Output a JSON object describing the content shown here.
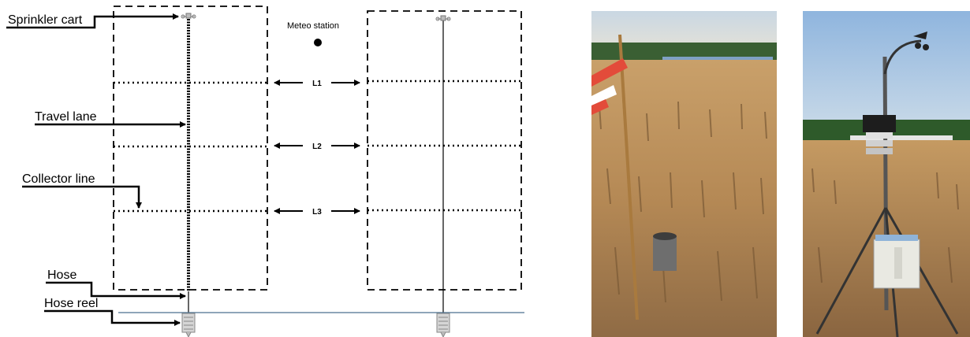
{
  "diagram": {
    "labels": {
      "sprinkler_cart": "Sprinkler cart",
      "travel_lane": "Travel lane",
      "collector_line": "Collector line",
      "hose": "Hose",
      "hose_reel": "Hose reel",
      "meteo_station": "Meteo station"
    },
    "lanes": [
      "L1",
      "L2",
      "L3"
    ]
  },
  "photos": [
    {
      "subject": "collector-field-photo"
    },
    {
      "subject": "meteo-station-photo"
    }
  ],
  "colors": {
    "baseline": "#4a6f8f",
    "sky": "#a9c8e3",
    "soil": "#b98d5a",
    "trees": "#2e5a2a"
  }
}
